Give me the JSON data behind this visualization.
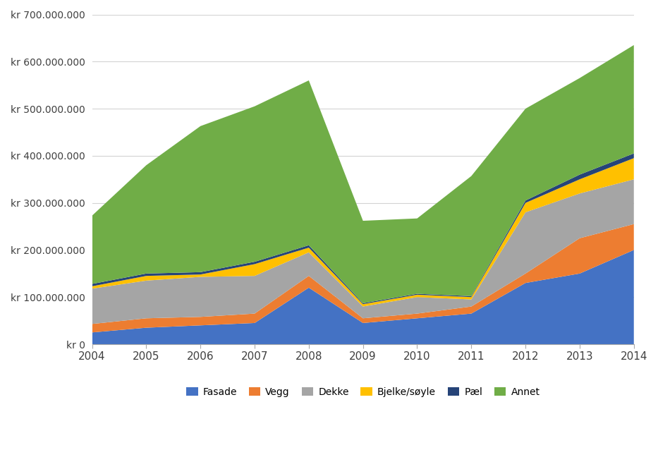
{
  "years": [
    2004,
    2005,
    2006,
    2007,
    2008,
    2009,
    2010,
    2011,
    2012,
    2013,
    2014
  ],
  "series": {
    "Fasade": [
      25000000,
      35000000,
      40000000,
      45000000,
      120000000,
      45000000,
      55000000,
      65000000,
      130000000,
      150000000,
      200000000
    ],
    "Vegg": [
      18000000,
      20000000,
      18000000,
      20000000,
      25000000,
      10000000,
      10000000,
      15000000,
      20000000,
      75000000,
      55000000
    ],
    "Dekke": [
      75000000,
      80000000,
      85000000,
      80000000,
      50000000,
      25000000,
      35000000,
      15000000,
      130000000,
      95000000,
      95000000
    ],
    "Bjelke/søyle": [
      5000000,
      10000000,
      5000000,
      25000000,
      10000000,
      5000000,
      5000000,
      5000000,
      20000000,
      30000000,
      45000000
    ],
    "Pæl": [
      5000000,
      5000000,
      5000000,
      5000000,
      5000000,
      2000000,
      2000000,
      2000000,
      5000000,
      10000000,
      10000000
    ],
    "Annet": [
      145000000,
      230000000,
      310000000,
      330000000,
      350000000,
      175000000,
      160000000,
      255000000,
      195000000,
      205000000,
      230000000
    ]
  },
  "colors": {
    "Fasade": "#4472C4",
    "Vegg": "#ED7D31",
    "Dekke": "#A5A5A5",
    "Bjelke/søyle": "#FFC000",
    "Pæl": "#264478",
    "Annet": "#70AD47"
  },
  "ylim": [
    0,
    700000000
  ],
  "yticks": [
    0,
    100000000,
    200000000,
    300000000,
    400000000,
    500000000,
    600000000,
    700000000
  ],
  "background_color": "#FFFFFF",
  "grid_color": "#D3D3D3"
}
